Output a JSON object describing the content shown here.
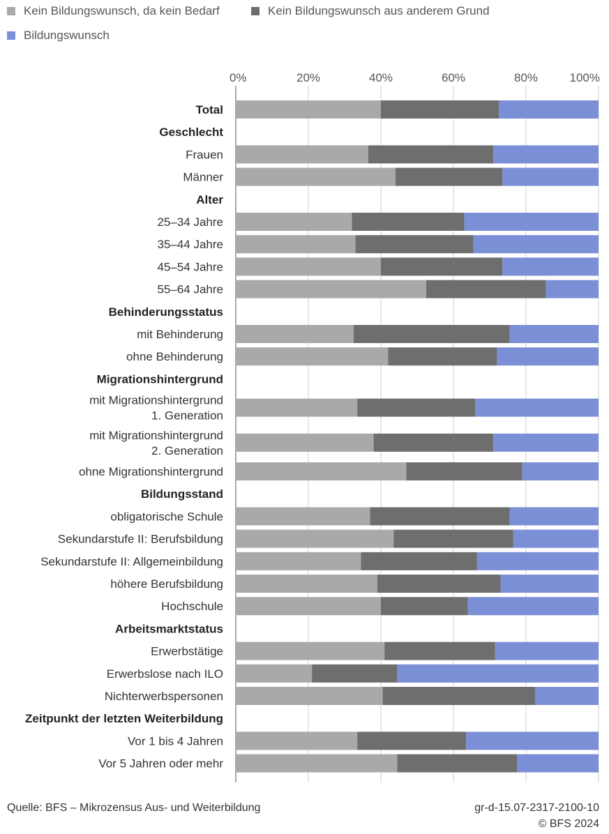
{
  "chart_data": {
    "type": "bar",
    "orientation": "horizontal",
    "stacked": true,
    "xlim": [
      0,
      100
    ],
    "x_ticks": [
      "0%",
      "20%",
      "40%",
      "60%",
      "80%",
      "100%"
    ],
    "grid": true,
    "legend_position": "top-left",
    "series": [
      {
        "name": "Kein Bildungswunsch, da kein Bedarf",
        "color": "#a9a9a9"
      },
      {
        "name": "Kein Bildungswunsch aus anderem Grund",
        "color": "#6e6e6e"
      },
      {
        "name": "Bildungswunsch",
        "color": "#7b8fd6"
      }
    ],
    "rows": [
      {
        "label": "Total",
        "header": true,
        "values": [
          40,
          32.5,
          27.5
        ]
      },
      {
        "label": "Geschlecht",
        "header": true
      },
      {
        "label": "Frauen",
        "values": [
          36.5,
          34.5,
          29
        ]
      },
      {
        "label": "Männer",
        "values": [
          44,
          29.5,
          26.5
        ]
      },
      {
        "label": "Alter",
        "header": true
      },
      {
        "label": "25–34 Jahre",
        "values": [
          32,
          31,
          37
        ]
      },
      {
        "label": "35–44 Jahre",
        "values": [
          33,
          32.5,
          34.5
        ]
      },
      {
        "label": "45–54 Jahre",
        "values": [
          40,
          33.5,
          26.5
        ]
      },
      {
        "label": "55–64 Jahre",
        "values": [
          52.5,
          33,
          14.5
        ]
      },
      {
        "label": "Behinderungsstatus",
        "header": true
      },
      {
        "label": "mit Behinderung",
        "values": [
          32.5,
          43,
          24.5
        ]
      },
      {
        "label": "ohne Behinderung",
        "values": [
          42,
          30,
          28
        ]
      },
      {
        "label": "Migrationshintergrund",
        "header": true
      },
      {
        "label": "mit Migrationshintergrund 1. Generation",
        "lines": [
          "mit Migrationshintergrund",
          "1. Generation"
        ],
        "values": [
          33.5,
          32.5,
          34
        ]
      },
      {
        "label": "mit Migrationshintergrund 2. Generation",
        "lines": [
          "mit Migrationshintergrund",
          "2. Generation"
        ],
        "values": [
          38,
          33,
          29
        ]
      },
      {
        "label": "ohne Migrationshintergrund",
        "values": [
          47,
          32,
          21
        ]
      },
      {
        "label": "Bildungsstand",
        "header": true
      },
      {
        "label": "obligatorische Schule",
        "values": [
          37,
          38.5,
          24.5
        ]
      },
      {
        "label": "Sekundarstufe II: Berufsbildung",
        "values": [
          43.5,
          33,
          23.5
        ]
      },
      {
        "label": "Sekundarstufe II: Allgemeinbildung",
        "values": [
          34.5,
          32,
          33.5
        ]
      },
      {
        "label": "höhere Berufsbildung",
        "values": [
          39,
          34,
          27
        ]
      },
      {
        "label": "Hochschule",
        "values": [
          40,
          24,
          36
        ]
      },
      {
        "label": "Arbeitsmarktstatus",
        "header": true
      },
      {
        "label": "Erwerbstätige",
        "values": [
          41,
          30.5,
          28.5
        ]
      },
      {
        "label": "Erwerbslose nach ILO",
        "values": [
          21,
          23.5,
          55.5
        ]
      },
      {
        "label": "Nichterwerbspersonen",
        "values": [
          40.5,
          42,
          17.5
        ]
      },
      {
        "label": "Zeitpunkt der letzten Weiterbildung",
        "header": true
      },
      {
        "label": "Vor 1 bis 4 Jahren",
        "values": [
          33.5,
          30,
          36.5
        ]
      },
      {
        "label": "Vor 5 Jahren oder mehr",
        "values": [
          44.5,
          33,
          22.5
        ]
      }
    ]
  },
  "footer": {
    "source": "Quelle: BFS – Mikrozensus Aus- und Weiterbildung",
    "code": "gr-d-15.07-2317-2100-10",
    "copyright": "© BFS 2024"
  }
}
